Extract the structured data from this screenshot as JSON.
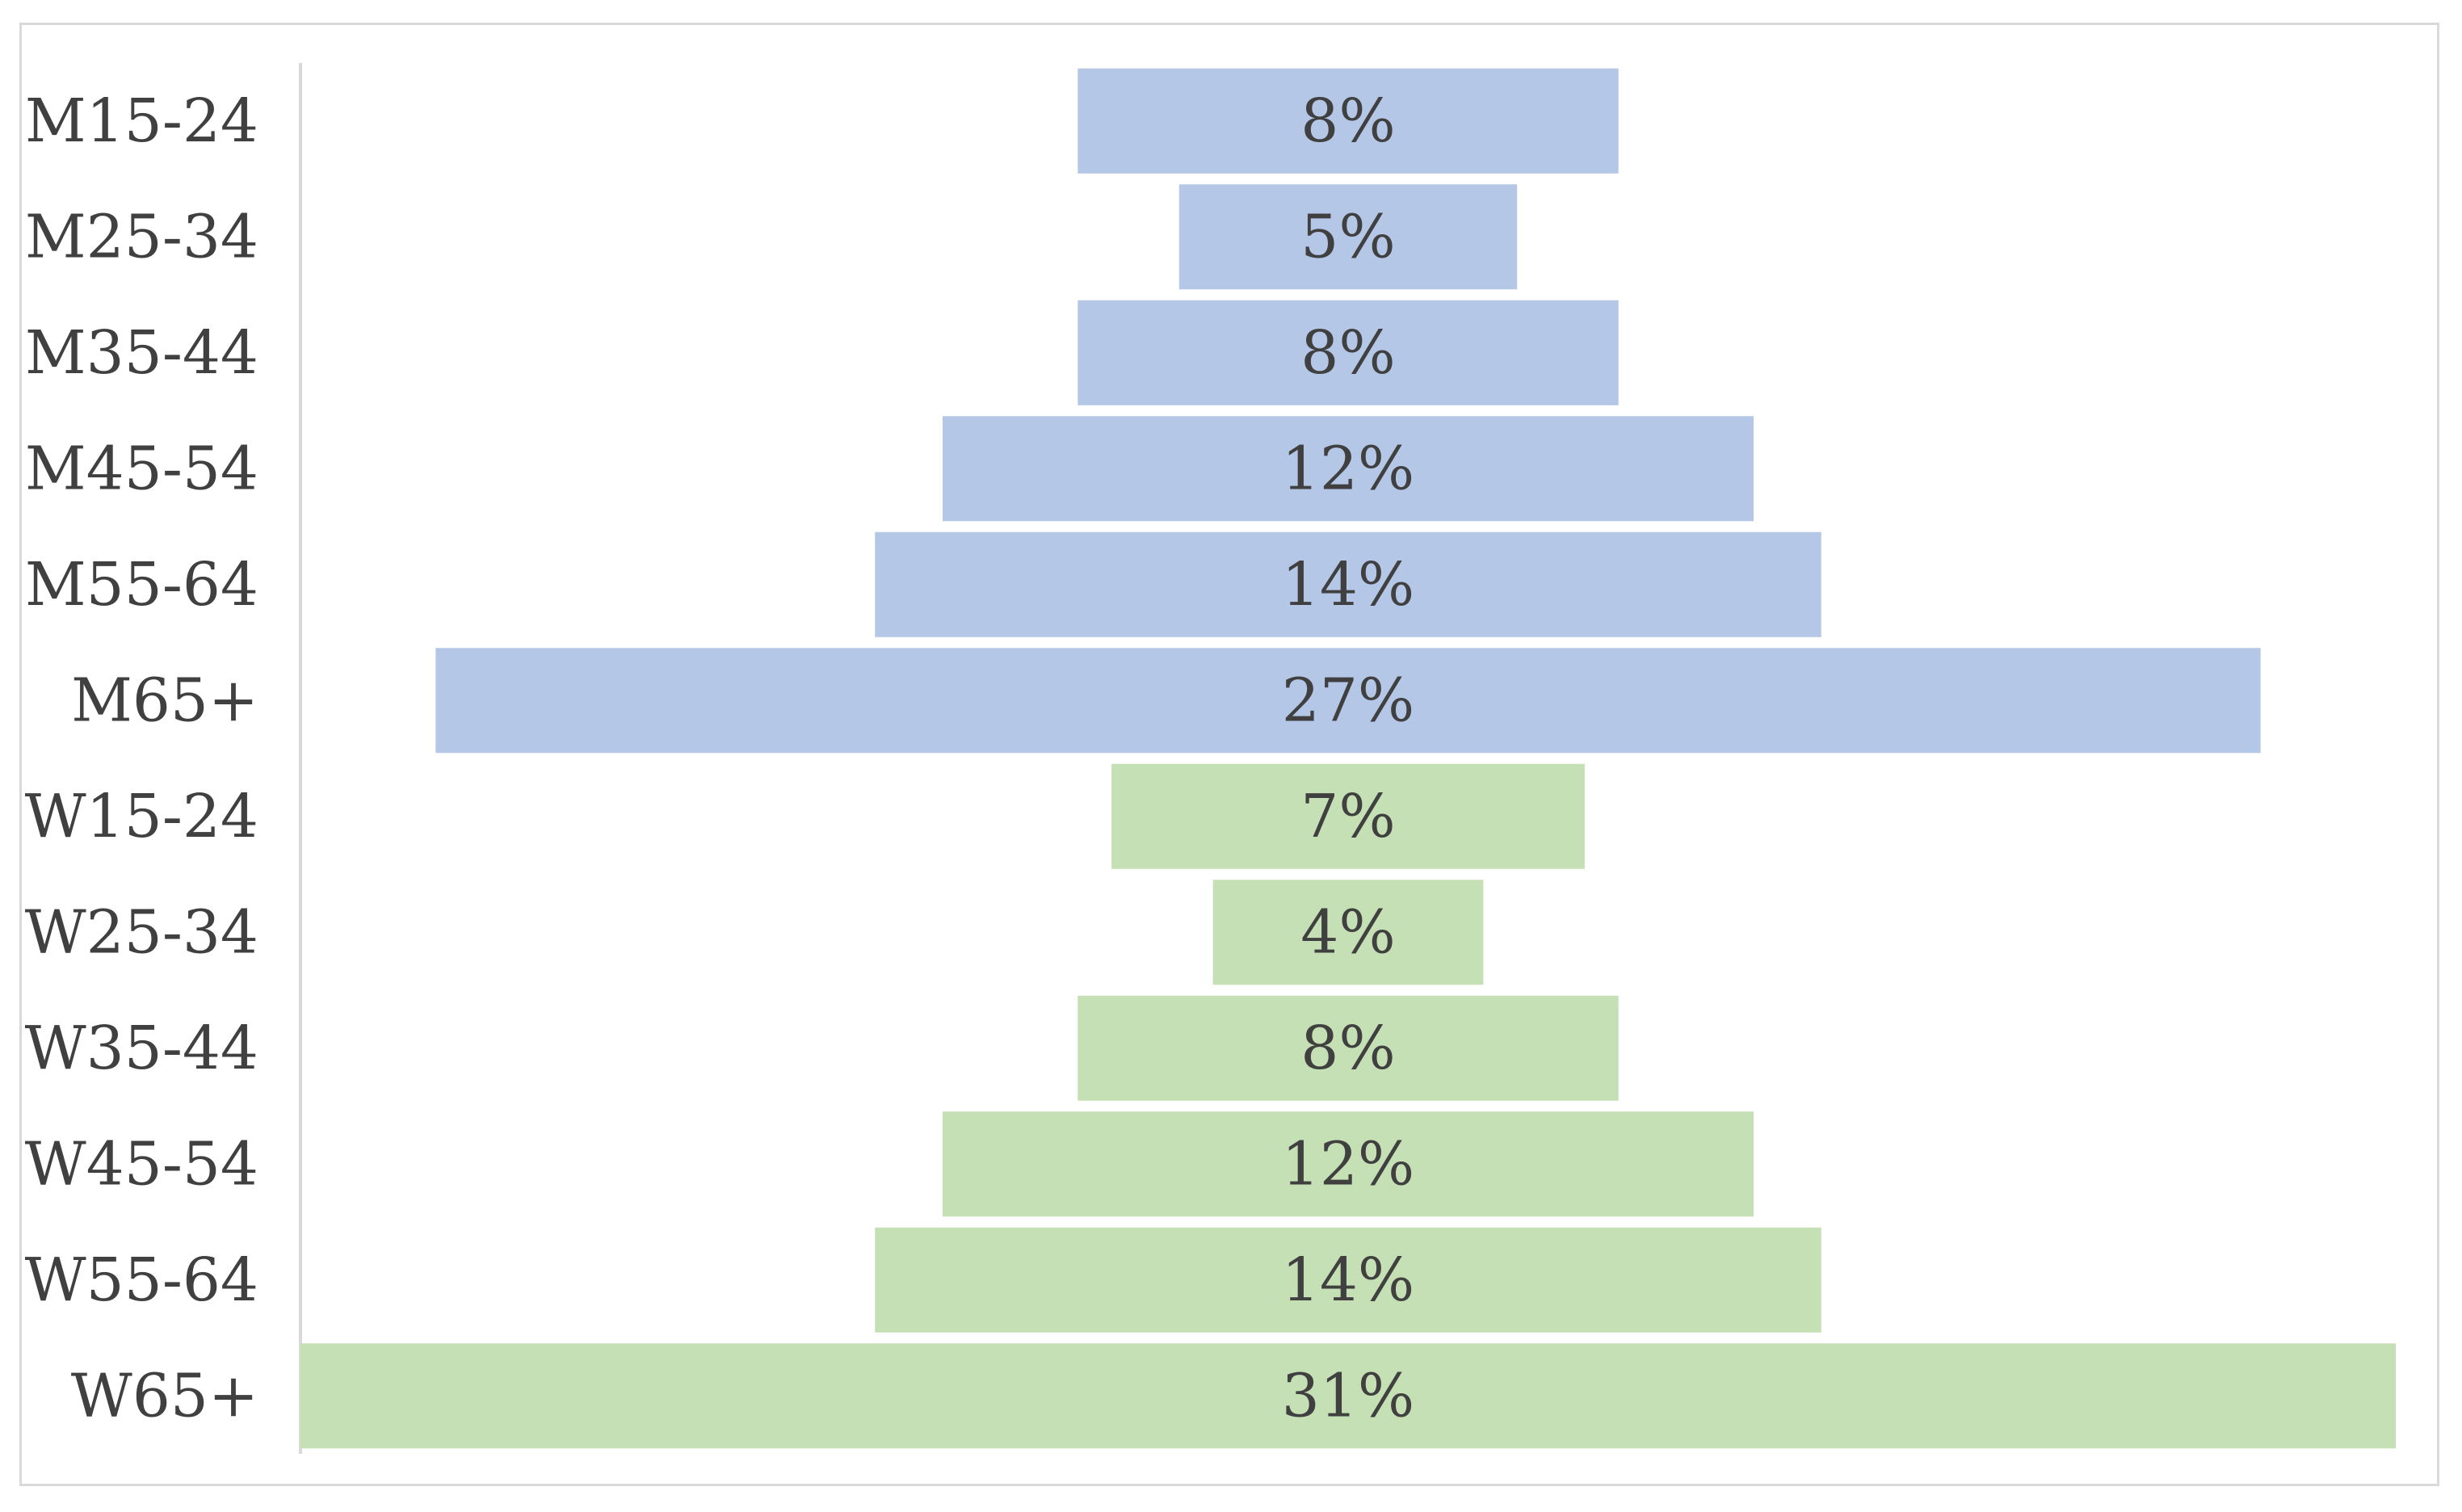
{
  "chart_data": {
    "type": "bar",
    "orientation": "horizontal",
    "layout": "centered-funnel",
    "categories": [
      "M15-24",
      "M25-34",
      "M35-44",
      "M45-54",
      "M55-64",
      "M65+",
      "W15-24",
      "W25-34",
      "W35-44",
      "W45-54",
      "W55-64",
      "W65+"
    ],
    "values": [
      8,
      5,
      8,
      12,
      14,
      27,
      7,
      4,
      8,
      12,
      14,
      31
    ],
    "data_labels": [
      "8%",
      "5%",
      "8%",
      "12%",
      "14%",
      "27%",
      "7%",
      "4%",
      "8%",
      "12%",
      "14%",
      "31%"
    ],
    "unit": "%",
    "title": "",
    "xlabel": "",
    "ylabel": "",
    "xlim": [
      0,
      31
    ],
    "grid": false,
    "legend": "none",
    "colors": {
      "M": "#b4c7e7",
      "W": "#c5e0b4",
      "axis": "#d9d9d9",
      "text": "#404040",
      "frame": "#d9d9d9"
    }
  }
}
